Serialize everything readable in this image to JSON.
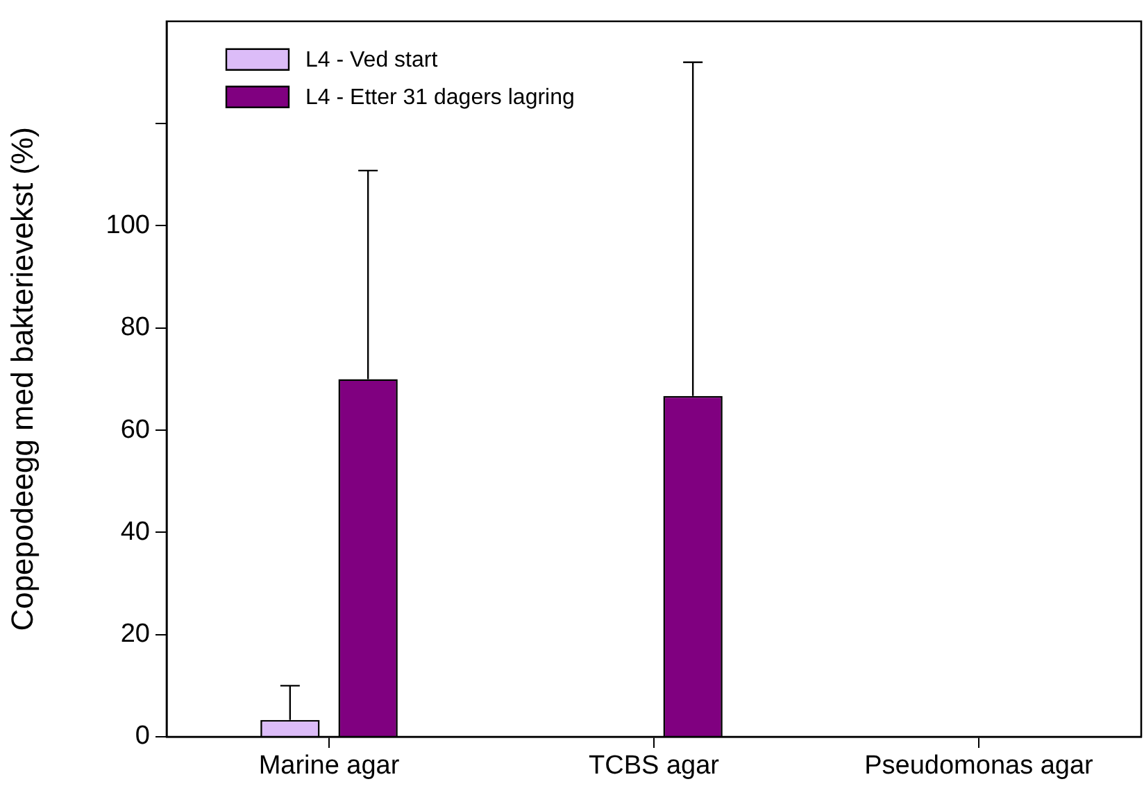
{
  "chart_data": {
    "type": "bar",
    "ylabel": "Copepodeegg med bakterievekst (%)",
    "categories": [
      "Marine agar",
      "TCBS agar",
      "Pseudomonas agar"
    ],
    "series": [
      {
        "name": "L4 - Ved start",
        "color": "#dcbcf8",
        "values": [
          3.3,
          0,
          0
        ],
        "errors": [
          [
            3.3,
            10
          ],
          null,
          null
        ]
      },
      {
        "name": "L4 - Etter 31 dagers lagring",
        "color": "#800080",
        "values": [
          70,
          66.7,
          0
        ],
        "errors": [
          [
            70,
            110.8
          ],
          [
            66.7,
            132
          ],
          null
        ]
      }
    ],
    "ylim": [
      0,
      140
    ],
    "yticks": [
      0,
      20,
      40,
      60,
      80,
      100,
      {
        "value": 120,
        "label": null
      }
    ],
    "grid": false,
    "legend": "top left"
  }
}
